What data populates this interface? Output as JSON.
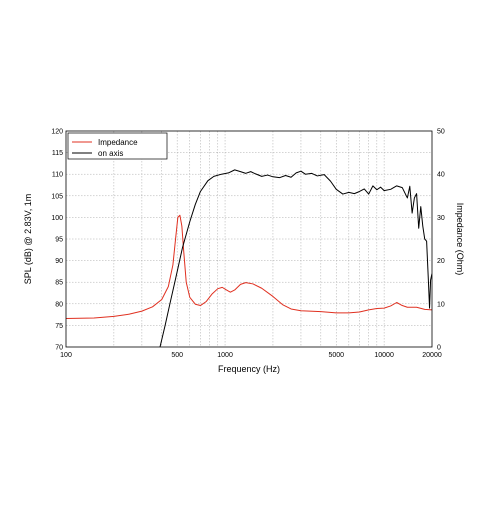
{
  "chart_data": {
    "type": "line",
    "title": "",
    "xlabel": "Frequency (Hz)",
    "ylabel_left": "SPL (dB) @ 2.83V, 1m",
    "ylabel_right": "Impedance (Ohm)",
    "x_scale": "log",
    "xlim": [
      100,
      20000
    ],
    "ylim_left": [
      70,
      120
    ],
    "ylim_right": [
      0,
      50
    ],
    "grid": true,
    "legend_position": "top-left",
    "x_ticks": [
      {
        "value": 100,
        "label": "100"
      },
      {
        "value": 500,
        "label": "500"
      },
      {
        "value": 1000,
        "label": "1000"
      },
      {
        "value": 5000,
        "label": "5000"
      },
      {
        "value": 10000,
        "label": "10000"
      },
      {
        "value": 20000,
        "label": "20000"
      }
    ],
    "y_ticks_left": [
      "70",
      "75",
      "80",
      "85",
      "90",
      "95",
      "100",
      "105",
      "110",
      "115",
      "120"
    ],
    "y_ticks_right": [
      "0",
      "10",
      "20",
      "30",
      "40",
      "50"
    ],
    "series": [
      {
        "name": "Impedance",
        "axis": "right",
        "color": "#e03020",
        "points": [
          [
            100,
            6.6
          ],
          [
            150,
            6.7
          ],
          [
            200,
            7.1
          ],
          [
            250,
            7.6
          ],
          [
            300,
            8.3
          ],
          [
            350,
            9.3
          ],
          [
            400,
            11.0
          ],
          [
            440,
            14.0
          ],
          [
            470,
            19.0
          ],
          [
            490,
            25.5
          ],
          [
            505,
            30.0
          ],
          [
            520,
            30.5
          ],
          [
            535,
            28.0
          ],
          [
            550,
            22.0
          ],
          [
            570,
            15.0
          ],
          [
            600,
            11.5
          ],
          [
            650,
            9.9
          ],
          [
            700,
            9.6
          ],
          [
            760,
            10.5
          ],
          [
            830,
            12.3
          ],
          [
            900,
            13.5
          ],
          [
            960,
            13.8
          ],
          [
            1020,
            13.2
          ],
          [
            1080,
            12.7
          ],
          [
            1150,
            13.2
          ],
          [
            1250,
            14.5
          ],
          [
            1350,
            14.9
          ],
          [
            1500,
            14.6
          ],
          [
            1700,
            13.6
          ],
          [
            2000,
            11.7
          ],
          [
            2300,
            9.8
          ],
          [
            2600,
            8.8
          ],
          [
            3000,
            8.4
          ],
          [
            4000,
            8.2
          ],
          [
            5000,
            7.9
          ],
          [
            6000,
            7.9
          ],
          [
            7000,
            8.1
          ],
          [
            8000,
            8.6
          ],
          [
            9000,
            8.9
          ],
          [
            10000,
            9.0
          ],
          [
            11000,
            9.5
          ],
          [
            12000,
            10.3
          ],
          [
            13000,
            9.6
          ],
          [
            14000,
            9.2
          ],
          [
            16000,
            9.2
          ],
          [
            18000,
            8.7
          ],
          [
            20000,
            8.6
          ]
        ]
      },
      {
        "name": "on axis",
        "axis": "left",
        "color": "#000000",
        "points": [
          [
            390,
            70
          ],
          [
            420,
            75
          ],
          [
            450,
            80
          ],
          [
            490,
            86
          ],
          [
            540,
            93
          ],
          [
            600,
            99
          ],
          [
            650,
            103
          ],
          [
            700,
            106
          ],
          [
            780,
            108.5
          ],
          [
            850,
            109.5
          ],
          [
            950,
            110
          ],
          [
            1050,
            110.3
          ],
          [
            1150,
            111
          ],
          [
            1250,
            110.6
          ],
          [
            1350,
            110.2
          ],
          [
            1450,
            110.6
          ],
          [
            1550,
            110.1
          ],
          [
            1700,
            109.5
          ],
          [
            1850,
            109.8
          ],
          [
            2000,
            109.4
          ],
          [
            2200,
            109.2
          ],
          [
            2400,
            109.7
          ],
          [
            2600,
            109.3
          ],
          [
            2800,
            110.3
          ],
          [
            3000,
            110.7
          ],
          [
            3200,
            110
          ],
          [
            3500,
            110.2
          ],
          [
            3800,
            109.6
          ],
          [
            4200,
            109.9
          ],
          [
            4600,
            108.4
          ],
          [
            5000,
            106.5
          ],
          [
            5500,
            105.4
          ],
          [
            6000,
            105.8
          ],
          [
            6500,
            105.5
          ],
          [
            7000,
            106
          ],
          [
            7500,
            106.6
          ],
          [
            8000,
            105.4
          ],
          [
            8500,
            107.3
          ],
          [
            9000,
            106.4
          ],
          [
            9500,
            107
          ],
          [
            10000,
            106.2
          ],
          [
            11000,
            106.5
          ],
          [
            12000,
            107.3
          ],
          [
            13000,
            106.9
          ],
          [
            14000,
            104.5
          ],
          [
            14500,
            107.2
          ],
          [
            15000,
            101
          ],
          [
            15500,
            104.5
          ],
          [
            16000,
            105.5
          ],
          [
            16500,
            97.5
          ],
          [
            17000,
            102.5
          ],
          [
            17500,
            98
          ],
          [
            18000,
            95
          ],
          [
            18500,
            94.5
          ],
          [
            19000,
            85
          ],
          [
            19300,
            79
          ],
          [
            19600,
            85.5
          ],
          [
            20000,
            87
          ]
        ]
      }
    ]
  }
}
